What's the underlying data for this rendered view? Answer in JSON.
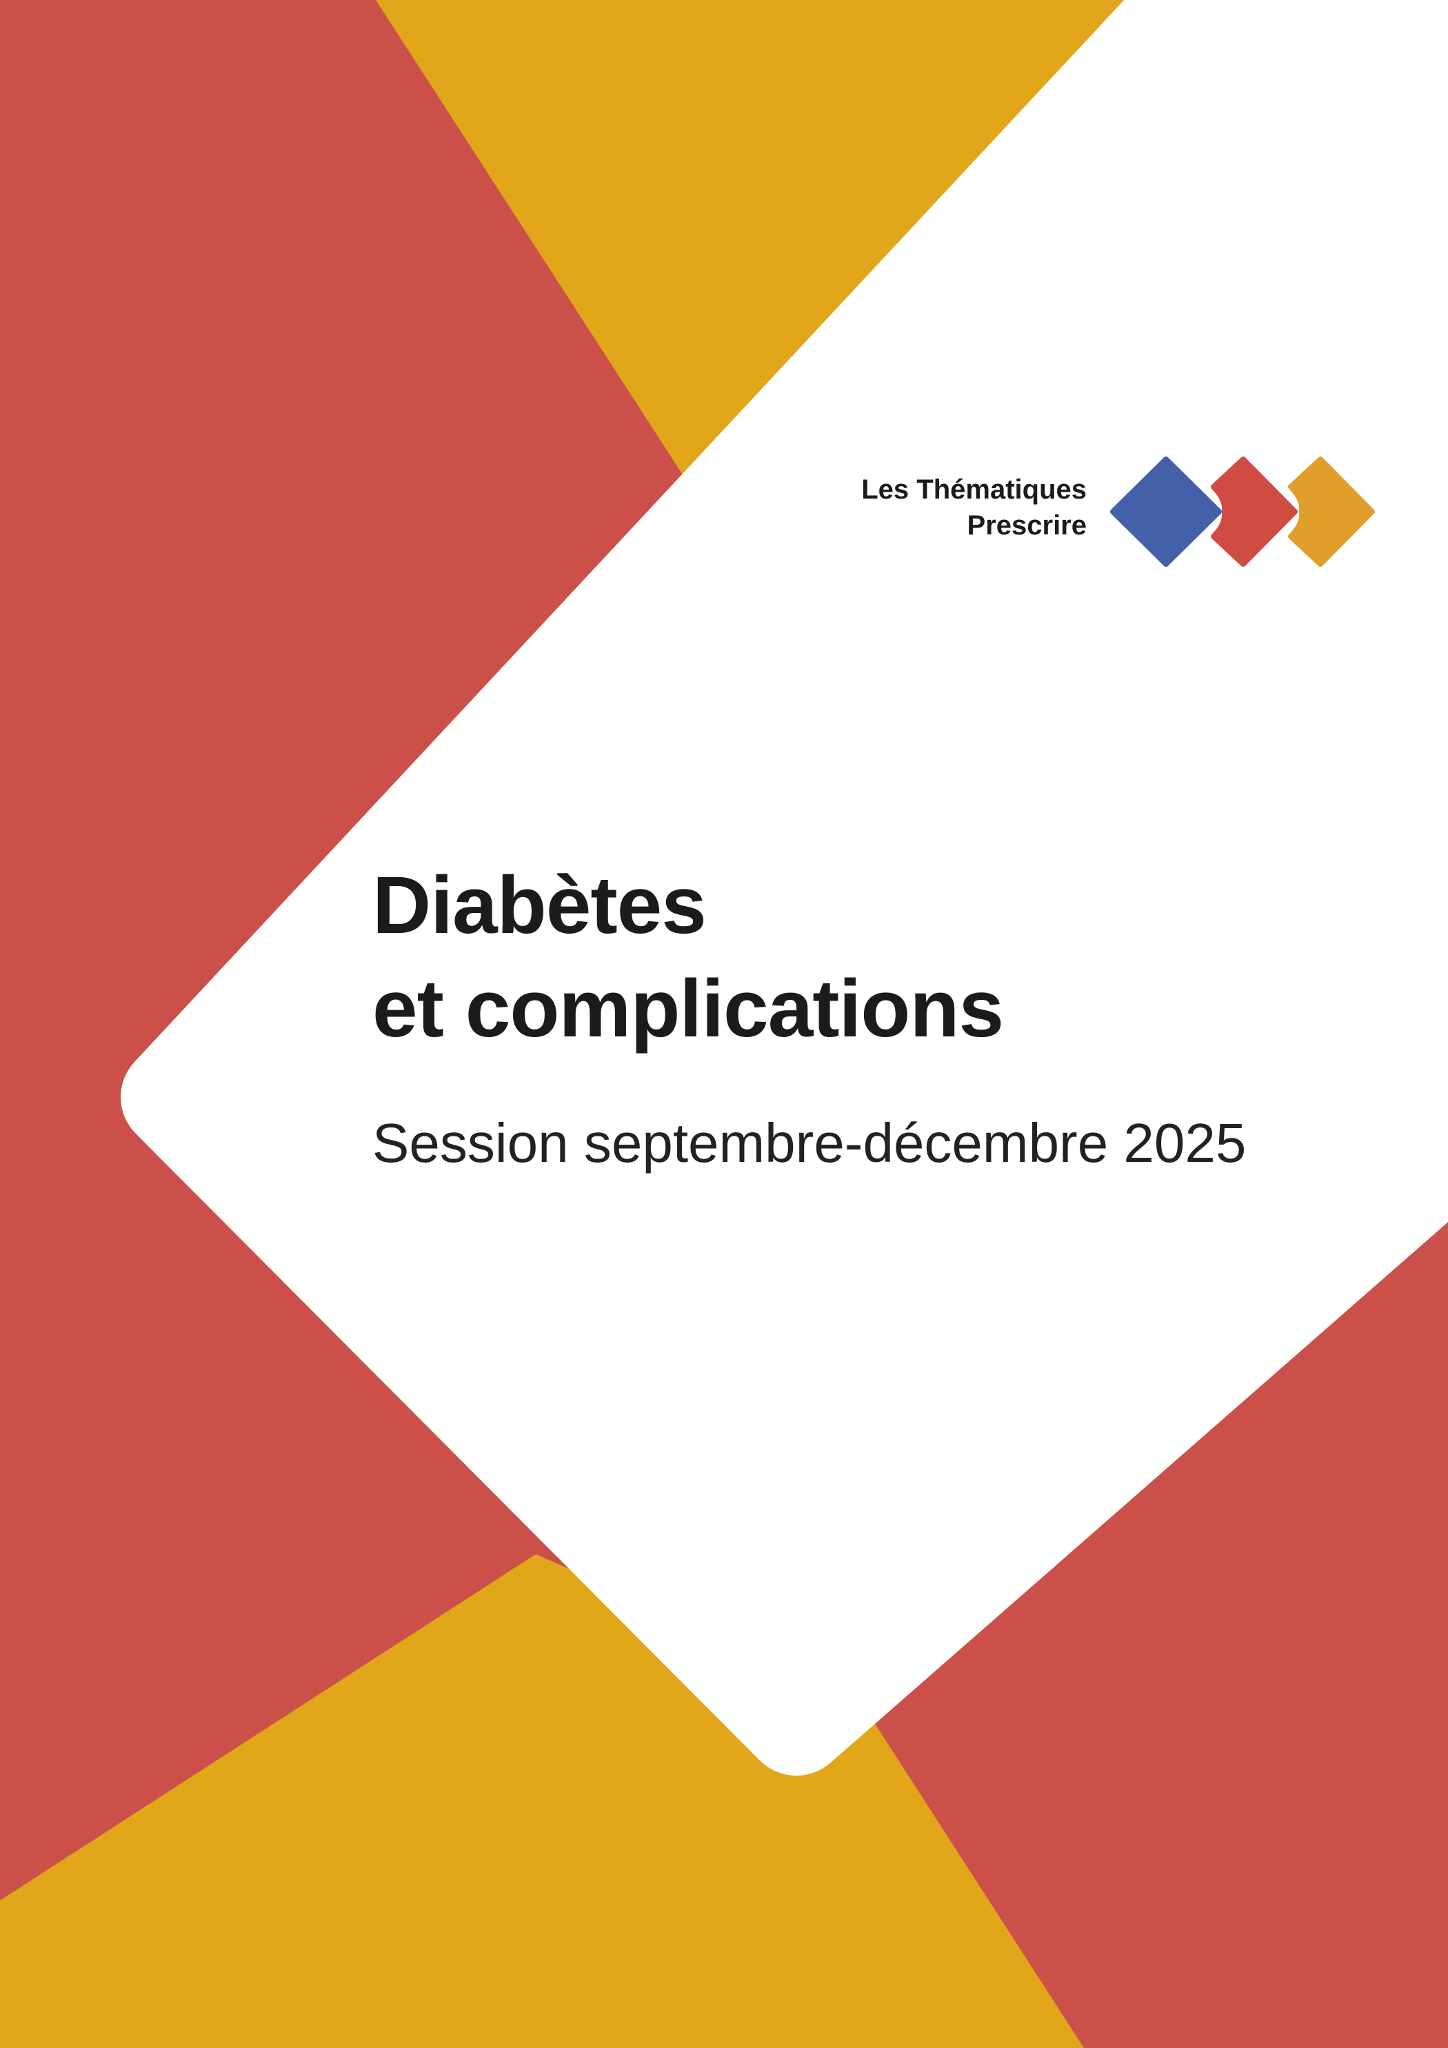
{
  "brand": {
    "line1": "Les Thématiques",
    "line2": "Prescrire",
    "logo_icon": "three-diamond-chevrons",
    "logo_colors": [
      "#4360A8",
      "#CE4C42",
      "#E19E2C"
    ]
  },
  "cover": {
    "title_line1": "Diabètes",
    "title_line2": "et complications",
    "subtitle": "Session septembre-décembre 2025"
  },
  "colors": {
    "red": "#CB5049",
    "yellow": "#E2A61B",
    "white": "#FFFFFF",
    "text": "#1B1B1B"
  }
}
